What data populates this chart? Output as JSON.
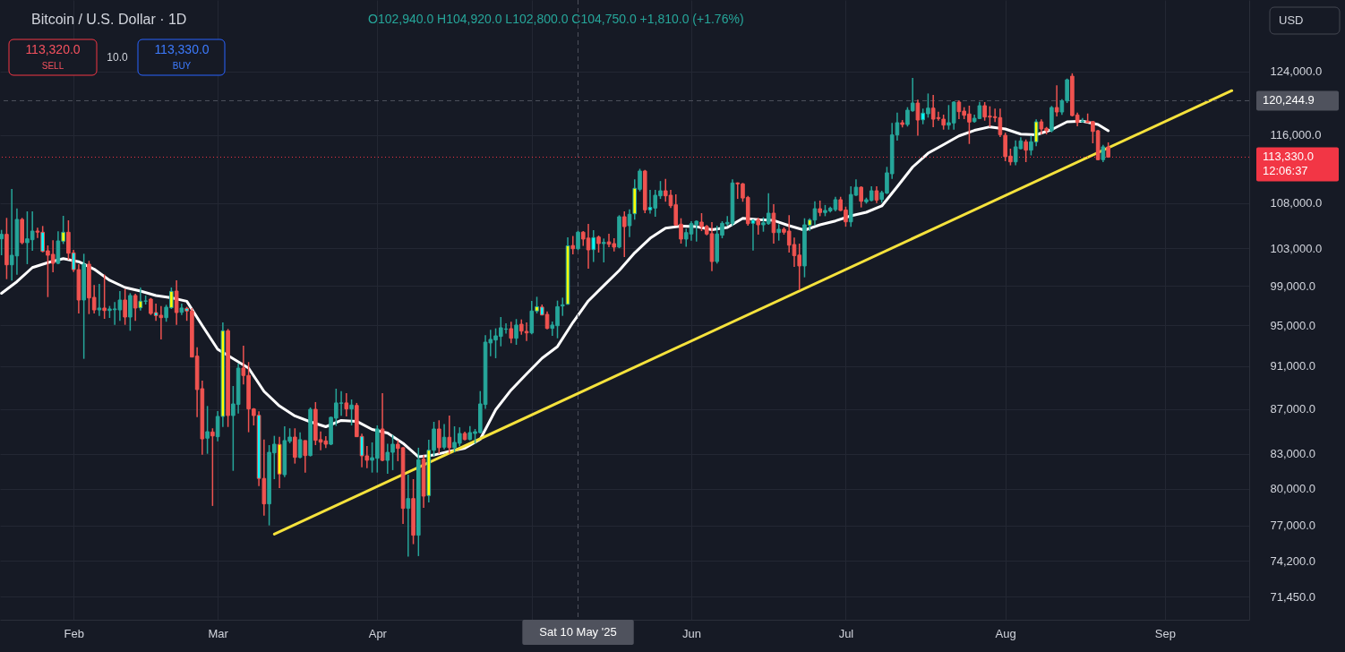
{
  "chart_data": {
    "type": "candlestick",
    "title": "Bitcoin / U.S. Dollar · 1D",
    "x": [
      "2025-01-18",
      "2025-01-19",
      "2025-01-20",
      "2025-01-21",
      "2025-01-22",
      "2025-01-23",
      "2025-01-24",
      "2025-01-25",
      "2025-01-26",
      "2025-01-27",
      "2025-01-28",
      "2025-01-29",
      "2025-01-30",
      "2025-01-31",
      "2025-02-01",
      "2025-02-02",
      "2025-02-03",
      "2025-02-04",
      "2025-02-05",
      "2025-02-06",
      "2025-02-07",
      "2025-02-08",
      "2025-02-09",
      "2025-02-10",
      "2025-02-11",
      "2025-02-12",
      "2025-02-13",
      "2025-02-14",
      "2025-02-15",
      "2025-02-16",
      "2025-02-17",
      "2025-02-18",
      "2025-02-19",
      "2025-02-20",
      "2025-02-21",
      "2025-02-22",
      "2025-02-23",
      "2025-02-24",
      "2025-02-25",
      "2025-02-26",
      "2025-02-27",
      "2025-02-28",
      "2025-03-01",
      "2025-03-02",
      "2025-03-03",
      "2025-03-04",
      "2025-03-05",
      "2025-03-06",
      "2025-03-07",
      "2025-03-08",
      "2025-03-09",
      "2025-03-10",
      "2025-03-11",
      "2025-03-12",
      "2025-03-13",
      "2025-03-14",
      "2025-03-15",
      "2025-03-16",
      "2025-03-17",
      "2025-03-18",
      "2025-03-19",
      "2025-03-20",
      "2025-03-21",
      "2025-03-22",
      "2025-03-23",
      "2025-03-24",
      "2025-03-25",
      "2025-03-26",
      "2025-03-27",
      "2025-03-28",
      "2025-03-29",
      "2025-03-30",
      "2025-03-31",
      "2025-04-01",
      "2025-04-02",
      "2025-04-03",
      "2025-04-04",
      "2025-04-05",
      "2025-04-06",
      "2025-04-07",
      "2025-04-08",
      "2025-04-09",
      "2025-04-10",
      "2025-04-11",
      "2025-04-12",
      "2025-04-13",
      "2025-04-14",
      "2025-04-15",
      "2025-04-16",
      "2025-04-17",
      "2025-04-18",
      "2025-04-19",
      "2025-04-20",
      "2025-04-21",
      "2025-04-22",
      "2025-04-23",
      "2025-04-24",
      "2025-04-25",
      "2025-04-26",
      "2025-04-27",
      "2025-04-28",
      "2025-04-29",
      "2025-04-30",
      "2025-05-01",
      "2025-05-02",
      "2025-05-03",
      "2025-05-04",
      "2025-05-05",
      "2025-05-06",
      "2025-05-07",
      "2025-05-08",
      "2025-05-09",
      "2025-05-10",
      "2025-05-11",
      "2025-05-12",
      "2025-05-13",
      "2025-05-14",
      "2025-05-15",
      "2025-05-16",
      "2025-05-17",
      "2025-05-18",
      "2025-05-19",
      "2025-05-20",
      "2025-05-21",
      "2025-05-22",
      "2025-05-23",
      "2025-05-24",
      "2025-05-25",
      "2025-05-26",
      "2025-05-27",
      "2025-05-28",
      "2025-05-29",
      "2025-05-30",
      "2025-05-31",
      "2025-06-01",
      "2025-06-02",
      "2025-06-03",
      "2025-06-04",
      "2025-06-05",
      "2025-06-06",
      "2025-06-07",
      "2025-06-08",
      "2025-06-09",
      "2025-06-10",
      "2025-06-11",
      "2025-06-12",
      "2025-06-13",
      "2025-06-14",
      "2025-06-15",
      "2025-06-16",
      "2025-06-17",
      "2025-06-18",
      "2025-06-19",
      "2025-06-20",
      "2025-06-21",
      "2025-06-22",
      "2025-06-23",
      "2025-06-24",
      "2025-06-25",
      "2025-06-26",
      "2025-06-27",
      "2025-06-28",
      "2025-06-29",
      "2025-06-30",
      "2025-07-01",
      "2025-07-02",
      "2025-07-03",
      "2025-07-04",
      "2025-07-05",
      "2025-07-06",
      "2025-07-07",
      "2025-07-08",
      "2025-07-09",
      "2025-07-10",
      "2025-07-11",
      "2025-07-12",
      "2025-07-13",
      "2025-07-14",
      "2025-07-15",
      "2025-07-16",
      "2025-07-17",
      "2025-07-18",
      "2025-07-19",
      "2025-07-20",
      "2025-07-21",
      "2025-07-22",
      "2025-07-23",
      "2025-07-24",
      "2025-07-25",
      "2025-07-26",
      "2025-07-27",
      "2025-07-28",
      "2025-07-29",
      "2025-07-30",
      "2025-07-31",
      "2025-08-01",
      "2025-08-02",
      "2025-08-03",
      "2025-08-04",
      "2025-08-05",
      "2025-08-06",
      "2025-08-07",
      "2025-08-08",
      "2025-08-09",
      "2025-08-10",
      "2025-08-11",
      "2025-08-12",
      "2025-08-13",
      "2025-08-14",
      "2025-08-15",
      "2025-08-16",
      "2025-08-17",
      "2025-08-18",
      "2025-08-19",
      "2025-08-20",
      "2025-08-21"
    ],
    "ohlc": [
      [
        104020,
        105000,
        102240,
        104510
      ],
      [
        104510,
        106330,
        99710,
        101220
      ],
      [
        101220,
        109600,
        99560,
        102240
      ],
      [
        102170,
        107390,
        100180,
        106160
      ],
      [
        106160,
        106330,
        103430,
        103600
      ],
      [
        103600,
        107060,
        101290,
        104020
      ],
      [
        103920,
        107060,
        102720,
        104870
      ],
      [
        104870,
        105230,
        104120,
        104750
      ],
      [
        104740,
        105430,
        102560,
        102650
      ],
      [
        102720,
        103300,
        97850,
        102240
      ],
      [
        102340,
        103860,
        100430,
        101380
      ],
      [
        101380,
        104840,
        101290,
        103790
      ],
      [
        103760,
        106560,
        103460,
        104740
      ],
      [
        104740,
        106060,
        101760,
        102460
      ],
      [
        102500,
        102820,
        100460,
        100710
      ],
      [
        100710,
        101290,
        96180,
        97550
      ],
      [
        97550,
        102400,
        91710,
        101290
      ],
      [
        101290,
        101640,
        96120,
        97760
      ],
      [
        97820,
        99090,
        96180,
        96540
      ],
      [
        96540,
        99220,
        95940,
        96730
      ],
      [
        96730,
        100180,
        95640,
        96480
      ],
      [
        96480,
        96940,
        95730,
        96640
      ],
      [
        96560,
        97340,
        95040,
        96640
      ],
      [
        96540,
        98470,
        95440,
        97550
      ],
      [
        97550,
        98680,
        95040,
        95820
      ],
      [
        95820,
        98250,
        94450,
        98010
      ],
      [
        98010,
        98180,
        95440,
        96730
      ],
      [
        96760,
        98840,
        96480,
        97430
      ],
      [
        97430,
        98010,
        97090,
        97460
      ],
      [
        97640,
        97760,
        96030,
        96180
      ],
      [
        96270,
        97180,
        95440,
        95970
      ],
      [
        96000,
        96940,
        93600,
        95760
      ],
      [
        95760,
        97060,
        95350,
        96820
      ],
      [
        96760,
        98840,
        96640,
        98440
      ],
      [
        98470,
        99590,
        95040,
        96270
      ],
      [
        96300,
        97180,
        96030,
        96730
      ],
      [
        96700,
        96850,
        95440,
        96430
      ],
      [
        96430,
        96720,
        91850,
        91880
      ],
      [
        91970,
        92830,
        86270,
        88800
      ],
      [
        88880,
        89640,
        82930,
        84320
      ],
      [
        84380,
        87280,
        83010,
        84960
      ],
      [
        84930,
        85260,
        78590,
        84580
      ],
      [
        84510,
        86810,
        84110,
        86330
      ],
      [
        86330,
        95280,
        85380,
        94450
      ],
      [
        94450,
        94630,
        85380,
        86410
      ],
      [
        86410,
        89130,
        81540,
        87470
      ],
      [
        87420,
        91250,
        86590,
        90820
      ],
      [
        90820,
        92980,
        89280,
        90120
      ],
      [
        90120,
        91400,
        84910,
        87010
      ],
      [
        87010,
        87090,
        85520,
        86410
      ],
      [
        86430,
        86800,
        80250,
        80890
      ],
      [
        80890,
        84270,
        77800,
        78760
      ],
      [
        78760,
        83770,
        77000,
        83140
      ],
      [
        83090,
        84590,
        80830,
        83850
      ],
      [
        83830,
        84510,
        80080,
        81270
      ],
      [
        81210,
        85440,
        81010,
        84170
      ],
      [
        84110,
        85260,
        83930,
        84480
      ],
      [
        84480,
        85260,
        82160,
        82700
      ],
      [
        82700,
        84900,
        82620,
        84250
      ],
      [
        84170,
        84190,
        81390,
        82860
      ],
      [
        82860,
        87150,
        82780,
        86980
      ],
      [
        86980,
        87640,
        83770,
        84190
      ],
      [
        84250,
        84980,
        83320,
        84030
      ],
      [
        84140,
        84560,
        83510,
        83850
      ],
      [
        83850,
        86300,
        83770,
        86250
      ],
      [
        86170,
        88880,
        85470,
        87560
      ],
      [
        87530,
        88660,
        86380,
        87560
      ],
      [
        87560,
        88460,
        86330,
        87010
      ],
      [
        87010,
        87880,
        85520,
        87370
      ],
      [
        87330,
        87560,
        84480,
        84510
      ],
      [
        84540,
        84780,
        81840,
        82830
      ],
      [
        82830,
        83690,
        81770,
        82450
      ],
      [
        82450,
        84010,
        81390,
        82670
      ],
      [
        82620,
        85520,
        81390,
        85200
      ],
      [
        85200,
        88460,
        82370,
        82440
      ],
      [
        82440,
        83880,
        81290,
        83140
      ],
      [
        83140,
        84670,
        81600,
        83850
      ],
      [
        83850,
        84190,
        82370,
        83480
      ],
      [
        83540,
        83600,
        77120,
        78390
      ],
      [
        78390,
        81210,
        74510,
        79200
      ],
      [
        79200,
        80830,
        75500,
        76210
      ],
      [
        76210,
        83540,
        74560,
        82500
      ],
      [
        82550,
        82890,
        78440,
        79400
      ],
      [
        79450,
        84250,
        78880,
        83320
      ],
      [
        83320,
        85840,
        82810,
        85200
      ],
      [
        85200,
        85980,
        83010,
        83540
      ],
      [
        83590,
        85640,
        83390,
        84460
      ],
      [
        84460,
        86410,
        83010,
        83540
      ],
      [
        83540,
        85440,
        83140,
        84010
      ],
      [
        83930,
        85350,
        83670,
        84800
      ],
      [
        84800,
        84960,
        84190,
        84270
      ],
      [
        84270,
        85460,
        84190,
        84880
      ],
      [
        84800,
        85200,
        83880,
        84960
      ],
      [
        84880,
        88660,
        84800,
        87470
      ],
      [
        87420,
        94010,
        87010,
        93330
      ],
      [
        93250,
        94540,
        91960,
        93600
      ],
      [
        93540,
        94690,
        91770,
        93950
      ],
      [
        93890,
        95820,
        92920,
        94750
      ],
      [
        94600,
        95190,
        94180,
        94630
      ],
      [
        94660,
        95350,
        93230,
        93710
      ],
      [
        93710,
        95620,
        93070,
        95020
      ],
      [
        95100,
        95580,
        94060,
        94420
      ],
      [
        94390,
        95280,
        93450,
        94240
      ],
      [
        94240,
        97460,
        94100,
        96430
      ],
      [
        96430,
        97880,
        96180,
        96870
      ],
      [
        96830,
        97090,
        95990,
        96030
      ],
      [
        96090,
        96390,
        94600,
        94690
      ],
      [
        94690,
        95370,
        93950,
        95020
      ],
      [
        94950,
        97490,
        93710,
        96870
      ],
      [
        96940,
        97790,
        95940,
        97060
      ],
      [
        97120,
        104180,
        97060,
        103260
      ],
      [
        103290,
        104330,
        102340,
        102940
      ],
      [
        102940,
        104920,
        102800,
        104750
      ],
      [
        104750,
        104870,
        103250,
        103990
      ],
      [
        104100,
        105660,
        100810,
        102820
      ],
      [
        102850,
        104970,
        101520,
        104150
      ],
      [
        104210,
        104380,
        102530,
        103500
      ],
      [
        103500,
        104050,
        101480,
        103630
      ],
      [
        103690,
        104580,
        103120,
        103430
      ],
      [
        103500,
        104080,
        102650,
        103120
      ],
      [
        103120,
        106630,
        103000,
        106460
      ],
      [
        106460,
        107060,
        102050,
        105360
      ],
      [
        105460,
        107290,
        104210,
        106730
      ],
      [
        106790,
        110710,
        106130,
        109680
      ],
      [
        109570,
        111950,
        109330,
        111690
      ],
      [
        111690,
        111820,
        106860,
        107230
      ],
      [
        107230,
        109500,
        106800,
        107520
      ],
      [
        107430,
        109500,
        106460,
        108890
      ],
      [
        108820,
        110520,
        108470,
        109400
      ],
      [
        109400,
        110780,
        108140,
        108820
      ],
      [
        108890,
        109500,
        107450,
        107700
      ],
      [
        107800,
        108990,
        105460,
        105530
      ],
      [
        105630,
        106290,
        103500,
        103990
      ],
      [
        103990,
        105140,
        103160,
        104700
      ],
      [
        104550,
        105960,
        103820,
        105690
      ],
      [
        105560,
        106030,
        103720,
        105960
      ],
      [
        105860,
        106860,
        104870,
        105360
      ],
      [
        105390,
        105530,
        104410,
        104550
      ],
      [
        104580,
        105860,
        100560,
        101570
      ],
      [
        101570,
        105460,
        101350,
        104550
      ],
      [
        104410,
        105960,
        104080,
        105730
      ],
      [
        105660,
        106530,
        105460,
        105830
      ],
      [
        105730,
        110710,
        105460,
        110300
      ],
      [
        110300,
        110360,
        108470,
        110200
      ],
      [
        110200,
        110300,
        108140,
        108570
      ],
      [
        108640,
        108820,
        105460,
        105690
      ],
      [
        105730,
        106190,
        102750,
        106060
      ],
      [
        106120,
        106360,
        104480,
        105560
      ],
      [
        105560,
        106400,
        104800,
        105790
      ],
      [
        105690,
        109130,
        105560,
        106860
      ],
      [
        106860,
        107870,
        103500,
        104700
      ],
      [
        104700,
        105630,
        103820,
        105070
      ],
      [
        105070,
        105290,
        104480,
        104740
      ],
      [
        104870,
        106630,
        102530,
        103330
      ],
      [
        103400,
        104150,
        101000,
        102200
      ],
      [
        102260,
        103500,
        98570,
        101100
      ],
      [
        101100,
        106290,
        99900,
        105560
      ],
      [
        105520,
        106290,
        104870,
        106090
      ],
      [
        106090,
        108200,
        105520,
        107360
      ],
      [
        107360,
        108280,
        106520,
        106930
      ],
      [
        106930,
        107780,
        106520,
        107160
      ],
      [
        107110,
        107590,
        106930,
        107420
      ],
      [
        107260,
        108710,
        107050,
        108380
      ],
      [
        108380,
        108710,
        107100,
        107160
      ],
      [
        107220,
        107590,
        105350,
        105890
      ],
      [
        105890,
        109910,
        105350,
        108970
      ],
      [
        108890,
        110710,
        108810,
        109810
      ],
      [
        109810,
        109910,
        107500,
        108200
      ],
      [
        108140,
        108610,
        107930,
        108380
      ],
      [
        108300,
        109910,
        108200,
        109400
      ],
      [
        109400,
        109910,
        108000,
        108340
      ],
      [
        108410,
        109400,
        108040,
        109190
      ],
      [
        109130,
        112180,
        109030,
        111480
      ],
      [
        111370,
        117470,
        110780,
        116000
      ],
      [
        116000,
        118750,
        115310,
        117500
      ],
      [
        117500,
        117830,
        116920,
        117280
      ],
      [
        117280,
        119430,
        117030,
        119060
      ],
      [
        118980,
        123150,
        118870,
        119950
      ],
      [
        119950,
        120370,
        115920,
        117830
      ],
      [
        117860,
        119250,
        117310,
        118690
      ],
      [
        118610,
        121160,
        118130,
        119310
      ],
      [
        119310,
        120980,
        116950,
        117940
      ],
      [
        118130,
        118870,
        117750,
        118020
      ],
      [
        117940,
        118500,
        116650,
        117200
      ],
      [
        117200,
        119700,
        116650,
        117500
      ],
      [
        117470,
        120180,
        116650,
        120070
      ],
      [
        120070,
        120290,
        117940,
        118870
      ],
      [
        118940,
        119430,
        117940,
        118420
      ],
      [
        118580,
        119620,
        114910,
        117580
      ],
      [
        117640,
        118500,
        117500,
        118050
      ],
      [
        118020,
        120100,
        117940,
        119620
      ],
      [
        119620,
        120070,
        117750,
        118200
      ],
      [
        118310,
        119540,
        116990,
        118200
      ],
      [
        118240,
        119250,
        117580,
        118130
      ],
      [
        118130,
        119250,
        115750,
        116040
      ],
      [
        115960,
        116270,
        112850,
        113380
      ],
      [
        113450,
        114340,
        112360,
        112770
      ],
      [
        112770,
        115350,
        112360,
        114560
      ],
      [
        114340,
        115720,
        114270,
        115280
      ],
      [
        115170,
        115450,
        112740,
        114160
      ],
      [
        114160,
        115890,
        113540,
        115170
      ],
      [
        115170,
        117910,
        114640,
        117610
      ],
      [
        117610,
        117910,
        116070,
        116730
      ],
      [
        116810,
        116980,
        116070,
        116510
      ],
      [
        116510,
        119580,
        116320,
        119390
      ],
      [
        119390,
        122210,
        118280,
        118830
      ],
      [
        118830,
        120440,
        118460,
        120220
      ],
      [
        120220,
        123070,
        119950,
        122920
      ],
      [
        123380,
        123750,
        118280,
        118390
      ],
      [
        118460,
        118750,
        117060,
        117530
      ],
      [
        117610,
        118090,
        117500,
        117720
      ],
      [
        117690,
        118640,
        117470,
        117530
      ],
      [
        117640,
        117720,
        114990,
        116430
      ],
      [
        116510,
        116620,
        112950,
        113030
      ],
      [
        113030,
        114790,
        112740,
        114560
      ],
      [
        114560,
        115100,
        113260,
        113330
      ]
    ],
    "colors": [
      "#26a69a",
      "#ef5350",
      "#26a69a",
      "#26a69a",
      "#ef5350",
      "#26a69a",
      "#26a69a",
      "#ef5350",
      "#00ffff",
      "#ef5350",
      "#ef5350",
      "#26a69a",
      "#ffff00",
      "#ef5350",
      "#00ffff",
      "#ef5350",
      "#26a69a",
      "#ef5350",
      "#ef5350",
      "#26a69a",
      "#ef5350",
      "#26a69a",
      "#26a69a",
      "#26a69a",
      "#ef5350",
      "#26a69a",
      "#ef5350",
      "#ffff00",
      "#26a69a",
      "#ef5350",
      "#00ffff",
      "#ef5350",
      "#26a69a",
      "#ffff00",
      "#ef5350",
      "#26a69a",
      "#00ffff",
      "#ef5350",
      "#ef5350",
      "#ef5350",
      "#26a69a",
      "#ef5350",
      "#26a69a",
      "#ffff00",
      "#ef5350",
      "#26a69a",
      "#26a69a",
      "#ef5350",
      "#ef5350",
      "#ef5350",
      "#00ffff",
      "#ef5350",
      "#26a69a",
      "#26a69a",
      "#ffff00",
      "#26a69a",
      "#26a69a",
      "#ef5350",
      "#26a69a",
      "#ef5350",
      "#26a69a",
      "#ef5350",
      "#ef5350",
      "#ef5350",
      "#26a69a",
      "#26a69a",
      "#26a69a",
      "#ef5350",
      "#26a69a",
      "#ef5350",
      "#00ffff",
      "#ef5350",
      "#26a69a",
      "#26a69a",
      "#ef5350",
      "#26a69a",
      "#26a69a",
      "#ef5350",
      "#ef5350",
      "#26a69a",
      "#ef5350",
      "#26a69a",
      "#ef5350",
      "#ffff00",
      "#26a69a",
      "#ef5350",
      "#26a69a",
      "#ef5350",
      "#26a69a",
      "#26a69a",
      "#ef5350",
      "#26a69a",
      "#26a69a",
      "#26a69a",
      "#26a69a",
      "#26a69a",
      "#26a69a",
      "#26a69a",
      "#26a69a",
      "#ef5350",
      "#26a69a",
      "#ef5350",
      "#ef5350",
      "#26a69a",
      "#ffff00",
      "#00ffff",
      "#ef5350",
      "#26a69a",
      "#26a69a",
      "#26a69a",
      "#ffff00",
      "#ef5350",
      "#26a69a",
      "#ef5350",
      "#ef5350",
      "#00ffff",
      "#ef5350",
      "#26a69a",
      "#ef5350",
      "#ef5350",
      "#26a69a",
      "#ef5350",
      "#26a69a",
      "#ffff00",
      "#26a69a",
      "#ef5350",
      "#00ffff",
      "#26a69a",
      "#26a69a",
      "#ef5350",
      "#ef5350",
      "#ef5350",
      "#ef5350",
      "#26a69a",
      "#26a69a",
      "#26a69a",
      "#ef5350",
      "#ef5350",
      "#ef5350",
      "#26a69a",
      "#26a69a",
      "#26a69a",
      "#26a69a",
      "#ef5350",
      "#ef5350",
      "#ef5350",
      "#00ffff",
      "#ef5350",
      "#26a69a",
      "#26a69a",
      "#ef5350",
      "#26a69a",
      "#ef5350",
      "#ef5350",
      "#ef5350",
      "#ef5350",
      "#26a69a",
      "#ffff00",
      "#26a69a",
      "#ef5350",
      "#26a69a",
      "#26a69a",
      "#26a69a",
      "#ef5350",
      "#ef5350",
      "#26a69a",
      "#26a69a",
      "#ef5350",
      "#26a69a",
      "#26a69a",
      "#ef5350",
      "#26a69a",
      "#26a69a",
      "#26a69a",
      "#26a69a",
      "#ef5350",
      "#26a69a",
      "#26a69a",
      "#ef5350",
      "#00ffff",
      "#26a69a",
      "#ef5350",
      "#ef5350",
      "#ef5350",
      "#26a69a",
      "#26a69a",
      "#ef5350",
      "#ef5350",
      "#ef5350",
      "#26a69a",
      "#26a69a",
      "#ef5350",
      "#ef5350",
      "#ef5350",
      "#ef5350",
      "#ef5350",
      "#ef5350",
      "#26a69a",
      "#26a69a",
      "#ef5350",
      "#26a69a",
      "#ffff00",
      "#ef5350",
      "#ef5350",
      "#26a69a",
      "#ef5350",
      "#26a69a",
      "#26a69a",
      "#ef5350",
      "#ef5350",
      "#26a69a",
      "#ef5350",
      "#ef5350",
      "#ef5350",
      "#26a69a",
      "#ef5350"
    ],
    "series": [
      {
        "type": "line",
        "color": "#ffffff",
        "x": [
          "2025-01-18",
          "2025-01-21",
          "2025-01-24",
          "2025-01-27",
          "2025-01-30",
          "2025-02-02",
          "2025-02-05",
          "2025-02-08",
          "2025-02-11",
          "2025-02-14",
          "2025-02-17",
          "2025-02-20",
          "2025-02-23",
          "2025-02-26",
          "2025-03-01",
          "2025-03-04",
          "2025-03-07",
          "2025-03-10",
          "2025-03-13",
          "2025-03-16",
          "2025-03-19",
          "2025-03-22",
          "2025-03-25",
          "2025-03-28",
          "2025-03-31",
          "2025-04-03",
          "2025-04-06",
          "2025-04-09",
          "2025-04-12",
          "2025-04-15",
          "2025-04-18",
          "2025-04-21",
          "2025-04-24",
          "2025-04-27",
          "2025-04-30",
          "2025-05-03",
          "2025-05-06",
          "2025-05-09",
          "2025-05-12",
          "2025-05-15",
          "2025-05-18",
          "2025-05-21",
          "2025-05-24",
          "2025-05-27",
          "2025-05-30",
          "2025-06-02",
          "2025-06-05",
          "2025-06-08",
          "2025-06-11",
          "2025-06-14",
          "2025-06-17",
          "2025-06-20",
          "2025-06-23",
          "2025-06-26",
          "2025-06-29",
          "2025-07-02",
          "2025-07-05",
          "2025-07-08",
          "2025-07-11",
          "2025-07-14",
          "2025-07-17",
          "2025-07-20",
          "2025-07-23",
          "2025-07-26",
          "2025-07-29",
          "2025-08-01",
          "2025-08-04",
          "2025-08-07",
          "2025-08-10",
          "2025-08-13",
          "2025-08-16",
          "2025-08-19",
          "2025-08-21"
        ],
        "values": [
          98240,
          99450,
          100930,
          101450,
          101880,
          101550,
          100760,
          99590,
          98840,
          98470,
          98010,
          97780,
          97420,
          94970,
          92630,
          91730,
          90820,
          88630,
          87280,
          86370,
          85840,
          85400,
          85970,
          85890,
          85160,
          84840,
          83930,
          82750,
          82900,
          83230,
          83500,
          84280,
          86940,
          88760,
          90270,
          91770,
          92900,
          95280,
          97460,
          99040,
          100620,
          102500,
          104080,
          105200,
          105420,
          105370,
          105020,
          105270,
          106280,
          106140,
          106050,
          105460,
          104970,
          105560,
          105990,
          106560,
          106960,
          107670,
          109860,
          112160,
          113800,
          114830,
          115880,
          116560,
          116990,
          116730,
          116100,
          116020,
          116650,
          117610,
          117690,
          117280,
          116510
        ]
      },
      {
        "type": "line",
        "color": "#f5e23c",
        "x": [
          "2025-03-12",
          "2025-09-14"
        ],
        "values": [
          76300,
          121520
        ]
      }
    ],
    "log": true,
    "xlim": [
      "2025-01-17T17:00",
      "2025-09-17T09:00"
    ],
    "xticks": [
      {
        "value": "2025-02-01",
        "label": "Feb"
      },
      {
        "value": "2025-03-01",
        "label": "Mar"
      },
      {
        "value": "2025-04-01",
        "label": "Apr"
      },
      {
        "value": "2025-05-01",
        "label": null
      },
      {
        "value": "2025-06-01",
        "label": "Jun"
      },
      {
        "value": "2025-07-01",
        "label": "Jul"
      },
      {
        "value": "2025-08-01",
        "label": "Aug"
      },
      {
        "value": "2025-09-01",
        "label": "Sep"
      }
    ],
    "ylim": [
      69740,
      133650
    ],
    "yticks": [
      {
        "value": 71450,
        "label": "71,450.0"
      },
      {
        "value": 74200,
        "label": "74,200.0"
      },
      {
        "value": 77000,
        "label": "77,000.0"
      },
      {
        "value": 80000,
        "label": "80,000.0"
      },
      {
        "value": 83000,
        "label": "83,000.0"
      },
      {
        "value": 87000,
        "label": "87,000.0"
      },
      {
        "value": 91000,
        "label": "91,000.0"
      },
      {
        "value": 95000,
        "label": "95,000.0"
      },
      {
        "value": 99000,
        "label": "99,000.0"
      },
      {
        "value": 103000,
        "label": "103,000.0"
      },
      {
        "value": 108000,
        "label": "108,000.0"
      },
      {
        "value": 116000,
        "label": "116,000.0"
      },
      {
        "value": 124000,
        "label": "124,000.0"
      }
    ],
    "grid": true,
    "ref_lines": [
      {
        "axis": "x",
        "value": "2025-05-10",
        "label": "Sat 10 May '25",
        "color": "#4f525d",
        "line_style": "dashed"
      },
      {
        "axis": "y",
        "value": 120244.9,
        "label": "120,244.9",
        "color": "#4f525d",
        "line_style": "dashed"
      },
      {
        "axis": "y",
        "value": 113330,
        "label": "113,330.0\n12:06:37",
        "color": "#f23645",
        "line_style": "dotted"
      }
    ],
    "annotations": [
      "O102,940.0 H104,920.0 L102,800.0 C104,750.0 +1,810.0 (+1.76%)",
      "113,320.0",
      "SELL",
      "10.0",
      "113,330.0",
      "BUY",
      "USD"
    ]
  }
}
